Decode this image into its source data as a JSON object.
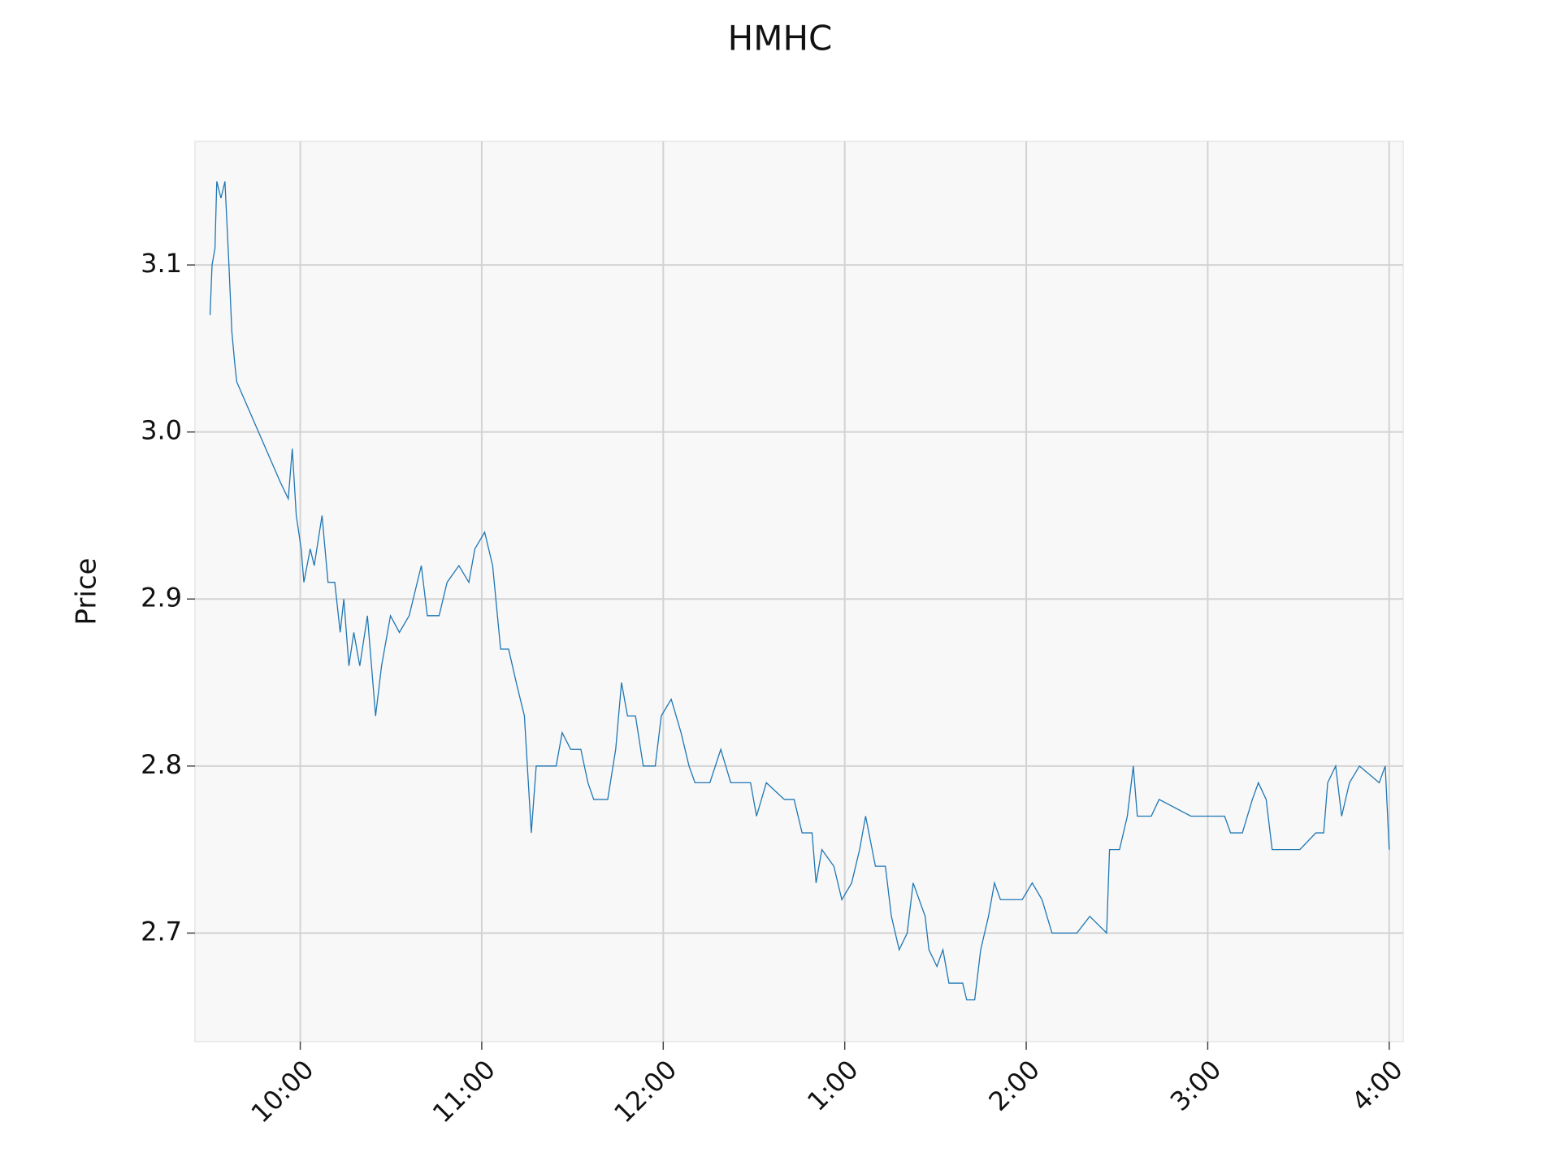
{
  "chart_data": {
    "type": "line",
    "title": "HMHC",
    "ylabel": "Price",
    "color": "#1f77b4",
    "grid": true,
    "x": [
      9.503,
      9.514,
      9.53,
      9.54,
      9.563,
      9.585,
      9.607,
      9.623,
      9.64,
      9.65,
      9.89,
      9.934,
      9.956,
      9.978,
      10.005,
      10.02,
      10.055,
      10.077,
      10.12,
      10.153,
      10.19,
      10.22,
      10.24,
      10.268,
      10.295,
      10.328,
      10.37,
      10.415,
      10.448,
      10.497,
      10.546,
      10.6,
      10.667,
      10.7,
      10.765,
      10.809,
      10.874,
      10.929,
      10.962,
      11.016,
      11.06,
      11.104,
      11.148,
      11.19,
      11.235,
      11.273,
      11.3,
      11.41,
      11.443,
      11.49,
      11.546,
      11.585,
      11.617,
      11.694,
      11.738,
      11.77,
      11.803,
      11.847,
      11.89,
      11.956,
      11.989,
      12.044,
      12.098,
      12.142,
      12.175,
      12.257,
      12.317,
      12.372,
      12.481,
      12.514,
      12.568,
      12.667,
      12.721,
      12.765,
      12.82,
      12.842,
      12.874,
      12.94,
      12.984,
      13.038,
      13.082,
      13.115,
      13.169,
      13.224,
      13.257,
      13.3,
      13.344,
      13.377,
      13.443,
      13.464,
      13.508,
      13.541,
      13.574,
      13.65,
      13.672,
      13.716,
      13.749,
      13.792,
      13.825,
      13.858,
      13.978,
      14.033,
      14.087,
      14.142,
      14.279,
      14.35,
      14.443,
      14.459,
      14.514,
      14.557,
      14.59,
      14.612,
      14.689,
      14.732,
      14.907,
      15.093,
      15.126,
      15.191,
      15.246,
      15.279,
      15.322,
      15.355,
      15.508,
      15.596,
      15.639,
      15.661,
      15.705,
      15.738,
      15.781,
      15.836,
      15.945,
      15.978,
      16.0
    ],
    "values": [
      3.07,
      3.1,
      3.11,
      3.15,
      3.14,
      3.15,
      3.1,
      3.06,
      3.04,
      3.03,
      2.97,
      2.96,
      2.99,
      2.95,
      2.93,
      2.91,
      2.93,
      2.92,
      2.95,
      2.91,
      2.91,
      2.88,
      2.9,
      2.86,
      2.88,
      2.86,
      2.89,
      2.83,
      2.86,
      2.89,
      2.88,
      2.89,
      2.92,
      2.89,
      2.89,
      2.91,
      2.92,
      2.91,
      2.93,
      2.94,
      2.92,
      2.87,
      2.87,
      2.85,
      2.83,
      2.76,
      2.8,
      2.8,
      2.82,
      2.81,
      2.81,
      2.79,
      2.78,
      2.78,
      2.81,
      2.85,
      2.83,
      2.83,
      2.8,
      2.8,
      2.83,
      2.84,
      2.82,
      2.8,
      2.79,
      2.79,
      2.81,
      2.79,
      2.79,
      2.77,
      2.79,
      2.78,
      2.78,
      2.76,
      2.76,
      2.73,
      2.75,
      2.74,
      2.72,
      2.73,
      2.75,
      2.77,
      2.74,
      2.74,
      2.71,
      2.69,
      2.7,
      2.73,
      2.71,
      2.69,
      2.68,
      2.69,
      2.67,
      2.67,
      2.66,
      2.66,
      2.69,
      2.71,
      2.73,
      2.72,
      2.72,
      2.73,
      2.72,
      2.7,
      2.7,
      2.71,
      2.7,
      2.75,
      2.75,
      2.77,
      2.8,
      2.77,
      2.77,
      2.78,
      2.77,
      2.77,
      2.76,
      2.76,
      2.78,
      2.79,
      2.78,
      2.75,
      2.75,
      2.76,
      2.76,
      2.79,
      2.8,
      2.77,
      2.79,
      2.8,
      2.79,
      2.8,
      2.75
    ],
    "xlim": [
      9.42,
      16.077
    ],
    "ylim": [
      2.635,
      3.174
    ],
    "xticks": [
      {
        "value": 10,
        "label": "10:00"
      },
      {
        "value": 11,
        "label": "11:00"
      },
      {
        "value": 12,
        "label": "12:00"
      },
      {
        "value": 13,
        "label": "1:00"
      },
      {
        "value": 14,
        "label": "2:00"
      },
      {
        "value": 15,
        "label": "3:00"
      },
      {
        "value": 16,
        "label": "4:00"
      }
    ],
    "yticks": [
      2.7,
      2.8,
      2.9,
      {
        "value": 3,
        "label": "3.0"
      },
      3.1
    ]
  }
}
